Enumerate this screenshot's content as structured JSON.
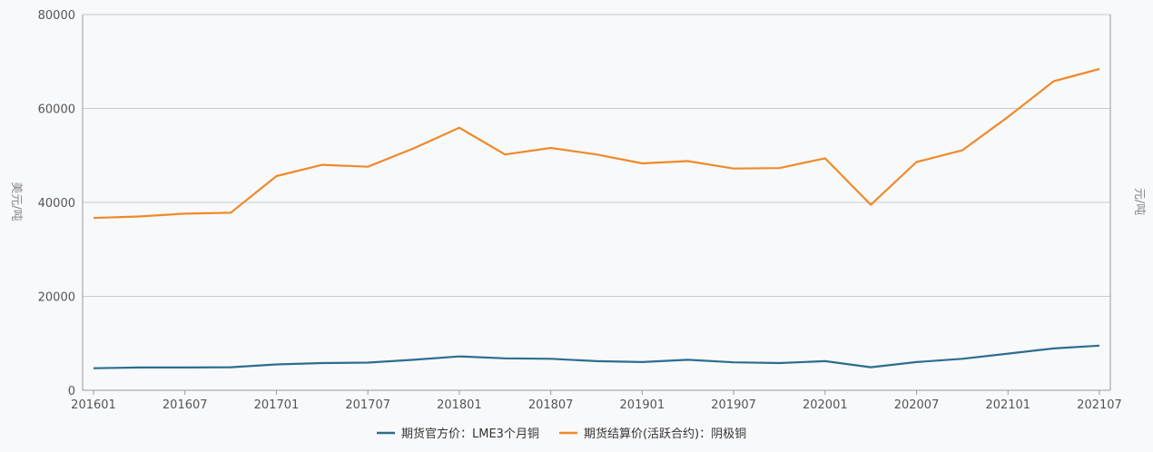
{
  "chart_data": {
    "type": "line",
    "left_ylabel": "美元/吨",
    "right_ylabel": "元/吨",
    "ylim": [
      0,
      80000
    ],
    "yticks": [
      0,
      20000,
      40000,
      60000,
      80000
    ],
    "x": [
      "201601",
      "201604",
      "201607",
      "201610",
      "201701",
      "201704",
      "201707",
      "201710",
      "201801",
      "201804",
      "201807",
      "201810",
      "201901",
      "201904",
      "201907",
      "201910",
      "202001",
      "202004",
      "202007",
      "202010",
      "202101",
      "202104",
      "202107"
    ],
    "xtick_labels": [
      "201601",
      "201607",
      "201701",
      "201707",
      "201801",
      "201807",
      "201901",
      "201907",
      "202001",
      "202007",
      "202101",
      "202107"
    ],
    "grid": true,
    "legend_position": "bottom",
    "series": [
      {
        "name": "期货官方价：LME3个月铜",
        "color": "#2c6e8e",
        "values": [
          4700,
          4850,
          4850,
          4900,
          5500,
          5800,
          5900,
          6500,
          7200,
          6800,
          6700,
          6200,
          6000,
          6500,
          5950,
          5800,
          6200,
          4900,
          6000,
          6700,
          7800,
          8900,
          9500
        ]
      },
      {
        "name": "期货结算价(活跃合约)：阴极铜",
        "color": "#f0892a",
        "values": [
          36700,
          37000,
          37600,
          37800,
          45600,
          48000,
          47600,
          51500,
          55900,
          50200,
          51600,
          50200,
          48300,
          48800,
          47200,
          47300,
          49400,
          39500,
          48600,
          51100,
          58200,
          65800,
          68400
        ]
      }
    ]
  }
}
